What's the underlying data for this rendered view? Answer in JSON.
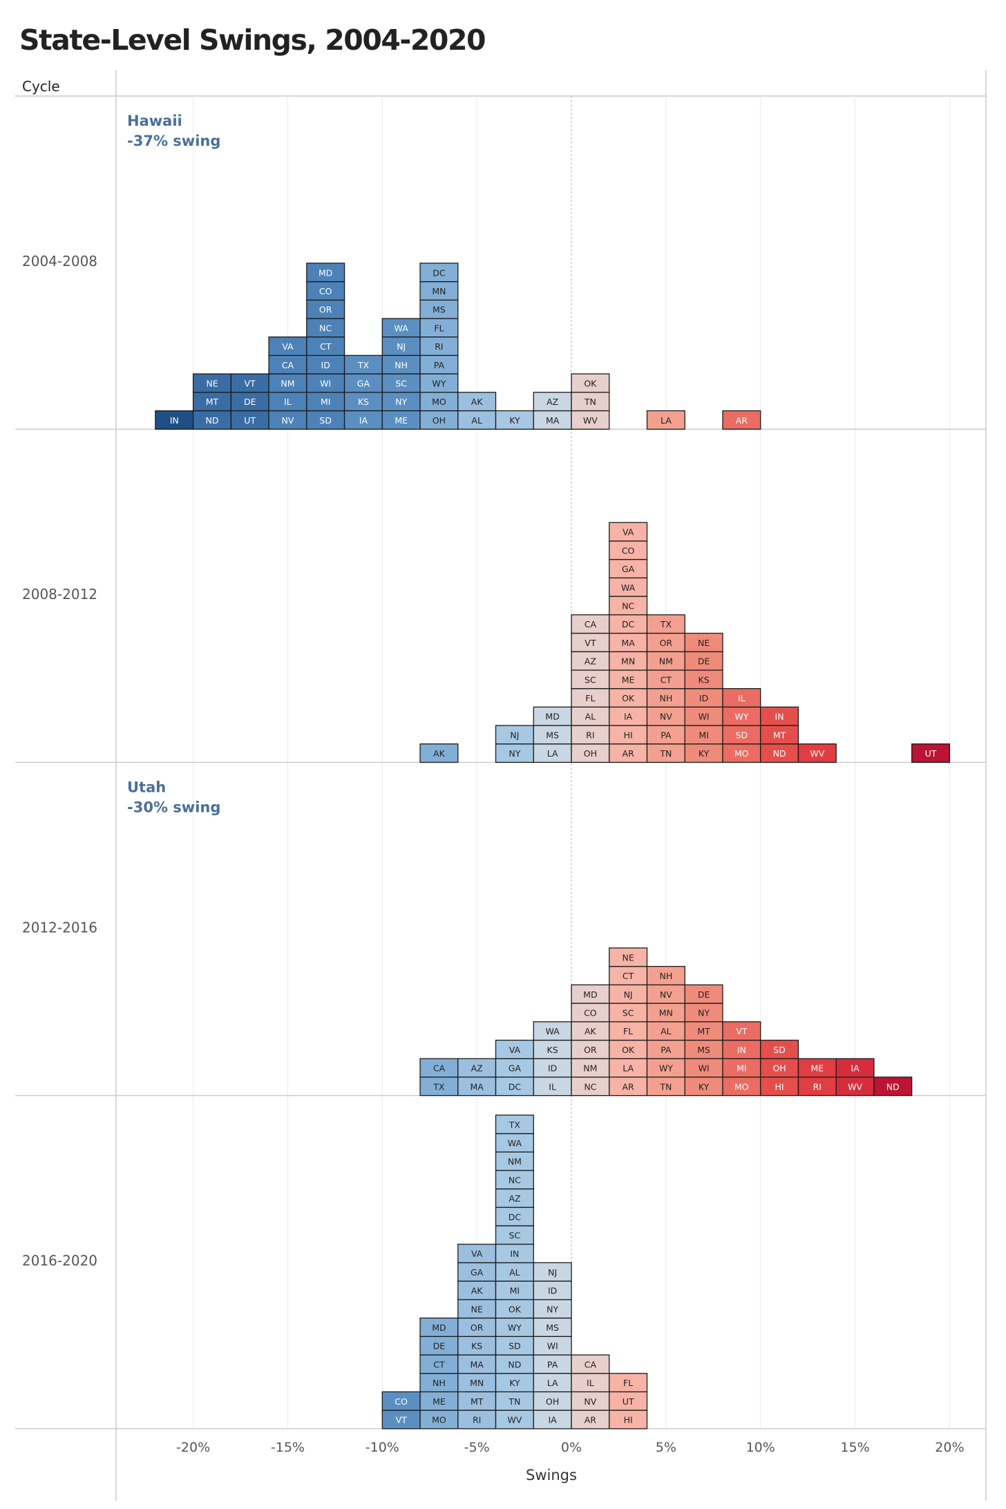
{
  "title": "State-Level Swings, 2004-2020",
  "chart_data": {
    "type": "dot-histogram",
    "title": "State-Level Swings, 2004-2020",
    "row_header": "Cycle",
    "xlabel": "Swings",
    "xlim": [
      -0.24,
      0.22
    ],
    "bin_width": 0.02,
    "x_ticks": [
      "-20%",
      "-15%",
      "-10%",
      "-5%",
      "0%",
      "5%",
      "10%",
      "15%",
      "20%"
    ],
    "x_tick_values": [
      -0.2,
      -0.15,
      -0.1,
      -0.05,
      0,
      0.05,
      0.1,
      0.15,
      0.2
    ],
    "panels": [
      {
        "cycle": "2004-2008",
        "annotation": {
          "state": "Hawaii",
          "swing": "-37% swing",
          "side": "left"
        },
        "bins": [
          {
            "bin_start": -0.22,
            "states": [
              "IN"
            ]
          },
          {
            "bin_start": -0.2,
            "states": [
              "ND",
              "MT",
              "NE"
            ]
          },
          {
            "bin_start": -0.18,
            "states": [
              "UT",
              "DE",
              "VT"
            ]
          },
          {
            "bin_start": -0.16,
            "states": [
              "NV",
              "IL",
              "NM",
              "CA",
              "VA"
            ]
          },
          {
            "bin_start": -0.14,
            "states": [
              "SD",
              "MI",
              "WI",
              "ID",
              "CT",
              "NC",
              "OR",
              "CO",
              "MD"
            ]
          },
          {
            "bin_start": -0.12,
            "states": [
              "IA",
              "KS",
              "GA",
              "TX"
            ]
          },
          {
            "bin_start": -0.1,
            "states": [
              "ME",
              "NY",
              "SC",
              "NH",
              "NJ",
              "WA"
            ]
          },
          {
            "bin_start": -0.08,
            "states": [
              "OH",
              "MO",
              "WY",
              "PA",
              "RI",
              "FL",
              "MS",
              "MN",
              "DC"
            ]
          },
          {
            "bin_start": -0.06,
            "states": [
              "AL",
              "AK"
            ]
          },
          {
            "bin_start": -0.04,
            "states": [
              "KY"
            ]
          },
          {
            "bin_start": -0.02,
            "states": [
              "MA",
              "AZ"
            ]
          },
          {
            "bin_start": 0.0,
            "states": [
              "WV",
              "TN",
              "OK"
            ]
          },
          {
            "bin_start": 0.04,
            "states": [
              "LA"
            ]
          },
          {
            "bin_start": 0.08,
            "states": [
              "AR"
            ]
          }
        ]
      },
      {
        "cycle": "2008-2012",
        "bins": [
          {
            "bin_start": -0.08,
            "states": [
              "AK"
            ]
          },
          {
            "bin_start": -0.04,
            "states": [
              "NY",
              "NJ"
            ]
          },
          {
            "bin_start": -0.02,
            "states": [
              "LA",
              "MS",
              "MD"
            ]
          },
          {
            "bin_start": 0.0,
            "states": [
              "OH",
              "RI",
              "AL",
              "FL",
              "SC",
              "AZ",
              "VT",
              "CA"
            ]
          },
          {
            "bin_start": 0.02,
            "states": [
              "AR",
              "HI",
              "IA",
              "OK",
              "ME",
              "MN",
              "MA",
              "DC",
              "NC",
              "WA",
              "GA",
              "CO",
              "VA"
            ]
          },
          {
            "bin_start": 0.04,
            "states": [
              "TN",
              "PA",
              "NV",
              "NH",
              "CT",
              "NM",
              "OR",
              "TX"
            ]
          },
          {
            "bin_start": 0.06,
            "states": [
              "KY",
              "MI",
              "WI",
              "ID",
              "KS",
              "DE",
              "NE"
            ]
          },
          {
            "bin_start": 0.08,
            "states": [
              "MO",
              "SD",
              "WY",
              "IL"
            ]
          },
          {
            "bin_start": 0.1,
            "states": [
              "ND",
              "MT",
              "IN"
            ]
          },
          {
            "bin_start": 0.12,
            "states": [
              "WV"
            ]
          },
          {
            "bin_start": 0.18,
            "states": [
              "UT"
            ]
          }
        ]
      },
      {
        "cycle": "2012-2016",
        "annotation": {
          "state": "Utah",
          "swing": "-30% swing",
          "side": "left"
        },
        "bins": [
          {
            "bin_start": -0.08,
            "states": [
              "TX",
              "CA"
            ]
          },
          {
            "bin_start": -0.06,
            "states": [
              "MA",
              "AZ"
            ]
          },
          {
            "bin_start": -0.04,
            "states": [
              "DC",
              "GA",
              "VA"
            ]
          },
          {
            "bin_start": -0.02,
            "states": [
              "IL",
              "ID",
              "KS",
              "WA"
            ]
          },
          {
            "bin_start": 0.0,
            "states": [
              "NC",
              "NM",
              "OR",
              "AK",
              "CO",
              "MD"
            ]
          },
          {
            "bin_start": 0.02,
            "states": [
              "AR",
              "LA",
              "OK",
              "FL",
              "SC",
              "NJ",
              "CT",
              "NE"
            ]
          },
          {
            "bin_start": 0.04,
            "states": [
              "TN",
              "WY",
              "PA",
              "AL",
              "MN",
              "NV",
              "NH"
            ]
          },
          {
            "bin_start": 0.06,
            "states": [
              "KY",
              "WI",
              "MS",
              "MT",
              "NY",
              "DE"
            ]
          },
          {
            "bin_start": 0.08,
            "states": [
              "MO",
              "MI",
              "IN",
              "VT"
            ]
          },
          {
            "bin_start": 0.1,
            "states": [
              "HI",
              "OH",
              "SD"
            ]
          },
          {
            "bin_start": 0.12,
            "states": [
              "RI",
              "ME"
            ]
          },
          {
            "bin_start": 0.14,
            "states": [
              "WV",
              "IA"
            ]
          },
          {
            "bin_start": 0.16,
            "states": [
              "ND"
            ]
          }
        ]
      },
      {
        "cycle": "2016-2020",
        "bins": [
          {
            "bin_start": -0.1,
            "states": [
              "VT",
              "CO"
            ]
          },
          {
            "bin_start": -0.08,
            "states": [
              "MO",
              "ME",
              "NH",
              "CT",
              "DE",
              "MD"
            ]
          },
          {
            "bin_start": -0.06,
            "states": [
              "RI",
              "MT",
              "MN",
              "MA",
              "KS",
              "OR",
              "NE",
              "AK",
              "GA",
              "VA"
            ]
          },
          {
            "bin_start": -0.04,
            "states": [
              "WV",
              "TN",
              "KY",
              "ND",
              "SD",
              "WY",
              "OK",
              "MI",
              "AL",
              "IN",
              "SC",
              "DC",
              "AZ",
              "NC",
              "NM",
              "WA",
              "TX"
            ]
          },
          {
            "bin_start": -0.02,
            "states": [
              "IA",
              "OH",
              "LA",
              "PA",
              "WI",
              "MS",
              "NY",
              "ID",
              "NJ"
            ]
          },
          {
            "bin_start": 0.0,
            "states": [
              "AR",
              "NV",
              "IL",
              "CA"
            ]
          },
          {
            "bin_start": 0.02,
            "states": [
              "HI",
              "UT",
              "FL"
            ]
          }
        ]
      }
    ]
  }
}
